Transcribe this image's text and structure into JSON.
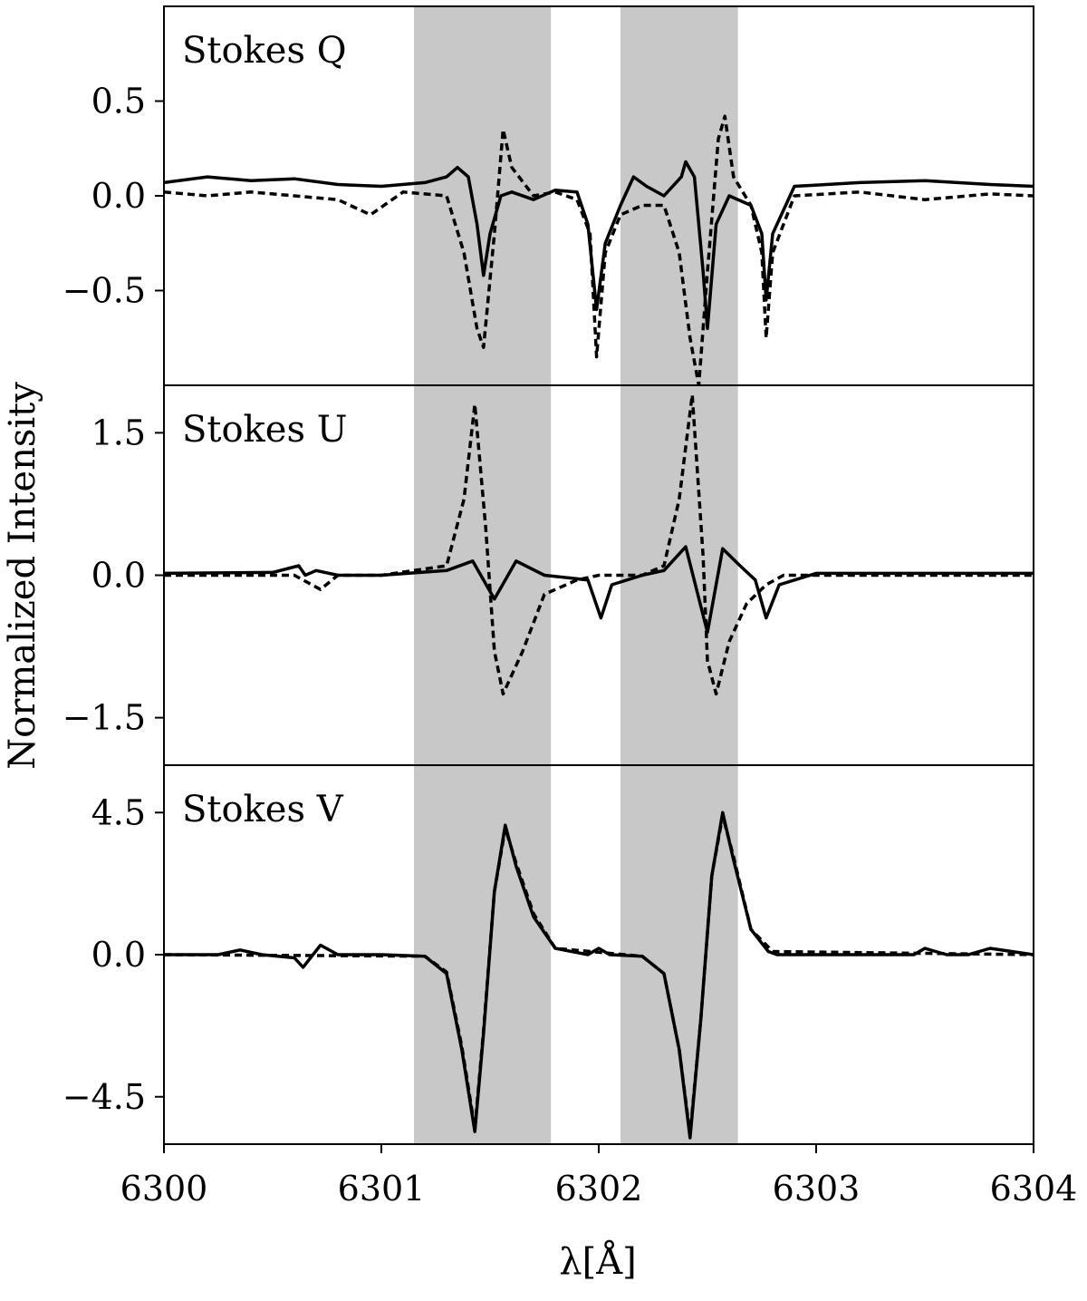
{
  "chart_data": {
    "type": "line",
    "xlabel": "λ[Å]",
    "ylabel": "Normalized Intensity",
    "xlim": [
      6300,
      6304
    ],
    "x_ticks": [
      "6300",
      "6301",
      "6302",
      "6303",
      "6304"
    ],
    "x_tick_values": [
      6300,
      6301,
      6302,
      6303,
      6304
    ],
    "shaded_bands": [
      [
        6301.15,
        6301.78
      ],
      [
        6302.1,
        6302.64
      ]
    ],
    "band_color": "#c8c8c8",
    "line_color": "#000000",
    "panels": [
      {
        "id": "Q",
        "label": "Stokes Q",
        "ylim": [
          -1.0,
          1.0
        ],
        "y_ticks": [
          "0.5",
          "0.0",
          "−0.5"
        ],
        "y_tick_values": [
          0.5,
          0.0,
          -0.5
        ],
        "series": [
          {
            "style": "solid",
            "x": [
              6300.0,
              6300.2,
              6300.4,
              6300.6,
              6300.8,
              6301.0,
              6301.2,
              6301.3,
              6301.35,
              6301.4,
              6301.44,
              6301.47,
              6301.5,
              6301.55,
              6301.6,
              6301.7,
              6301.8,
              6301.9,
              6301.95,
              6301.99,
              6302.03,
              6302.1,
              6302.16,
              6302.22,
              6302.3,
              6302.38,
              6302.4,
              6302.44,
              6302.48,
              6302.5,
              6302.54,
              6302.6,
              6302.7,
              6302.75,
              6302.77,
              6302.8,
              6302.9,
              6303.2,
              6303.5,
              6303.8,
              6304.0
            ],
            "y": [
              0.07,
              0.1,
              0.08,
              0.09,
              0.06,
              0.05,
              0.07,
              0.1,
              0.15,
              0.1,
              -0.15,
              -0.42,
              -0.2,
              0.0,
              0.02,
              -0.02,
              0.03,
              0.02,
              -0.15,
              -0.6,
              -0.25,
              -0.05,
              0.1,
              0.05,
              0.0,
              0.1,
              0.18,
              0.1,
              -0.4,
              -0.7,
              -0.15,
              0.0,
              -0.05,
              -0.2,
              -0.55,
              -0.2,
              0.05,
              0.07,
              0.08,
              0.06,
              0.05
            ]
          },
          {
            "style": "dashed",
            "x": [
              6300.0,
              6300.2,
              6300.4,
              6300.6,
              6300.8,
              6300.95,
              6301.1,
              6301.3,
              6301.38,
              6301.44,
              6301.47,
              6301.52,
              6301.56,
              6301.6,
              6301.7,
              6301.8,
              6301.9,
              6301.96,
              6301.99,
              6302.03,
              6302.1,
              6302.2,
              6302.3,
              6302.37,
              6302.42,
              6302.46,
              6302.5,
              6302.55,
              6302.58,
              6302.62,
              6302.7,
              6302.75,
              6302.77,
              6302.8,
              6302.9,
              6303.2,
              6303.5,
              6303.8,
              6304.0
            ],
            "y": [
              0.02,
              0.0,
              0.02,
              0.0,
              -0.02,
              -0.1,
              0.02,
              0.0,
              -0.3,
              -0.7,
              -0.8,
              -0.2,
              0.35,
              0.15,
              0.0,
              0.02,
              -0.02,
              -0.2,
              -0.85,
              -0.3,
              -0.1,
              -0.05,
              -0.05,
              -0.3,
              -0.75,
              -1.0,
              -0.4,
              0.3,
              0.42,
              0.1,
              -0.05,
              -0.3,
              -0.75,
              -0.3,
              0.0,
              0.02,
              -0.02,
              0.01,
              0.0
            ]
          }
        ]
      },
      {
        "id": "U",
        "label": "Stokes U",
        "ylim": [
          -2.0,
          2.0
        ],
        "y_ticks": [
          "1.5",
          "0.0",
          "−1.5"
        ],
        "y_tick_values": [
          1.5,
          0.0,
          -1.5
        ],
        "series": [
          {
            "style": "solid",
            "x": [
              6300.0,
              6300.5,
              6300.62,
              6300.65,
              6300.7,
              6300.8,
              6301.0,
              6301.3,
              6301.42,
              6301.52,
              6301.62,
              6301.75,
              6301.95,
              6302.01,
              6302.06,
              6302.2,
              6302.3,
              6302.4,
              6302.5,
              6302.57,
              6302.65,
              6302.72,
              6302.77,
              6302.83,
              6303.0,
              6303.5,
              6304.0
            ],
            "y": [
              0.02,
              0.03,
              0.1,
              0.0,
              0.05,
              0.0,
              0.0,
              0.05,
              0.15,
              -0.25,
              0.15,
              0.0,
              -0.05,
              -0.45,
              -0.1,
              0.0,
              0.05,
              0.3,
              -0.6,
              0.28,
              0.1,
              -0.05,
              -0.45,
              -0.1,
              0.02,
              0.02,
              0.02
            ]
          },
          {
            "style": "dashed",
            "x": [
              6300.0,
              6300.6,
              6300.72,
              6300.8,
              6301.0,
              6301.3,
              6301.38,
              6301.43,
              6301.48,
              6301.52,
              6301.56,
              6301.65,
              6301.75,
              6301.9,
              6302.0,
              6302.2,
              6302.3,
              6302.37,
              6302.43,
              6302.48,
              6302.5,
              6302.54,
              6302.6,
              6302.68,
              6302.77,
              6302.85,
              6303.0,
              6303.5,
              6304.0
            ],
            "y": [
              0.0,
              0.0,
              -0.15,
              0.0,
              0.0,
              0.1,
              0.8,
              1.8,
              0.5,
              -0.8,
              -1.25,
              -0.8,
              -0.2,
              -0.05,
              0.0,
              0.0,
              0.1,
              0.8,
              1.9,
              0.2,
              -0.9,
              -1.25,
              -0.7,
              -0.3,
              -0.1,
              0.0,
              0.0,
              0.0,
              0.0
            ]
          }
        ]
      },
      {
        "id": "V",
        "label": "Stokes V",
        "ylim": [
          -6.0,
          6.0
        ],
        "y_ticks": [
          "4.5",
          "0.0",
          "−4.5"
        ],
        "y_tick_values": [
          4.5,
          0.0,
          -4.5
        ],
        "series": [
          {
            "style": "solid",
            "x": [
              6300.0,
              6300.25,
              6300.35,
              6300.45,
              6300.6,
              6300.64,
              6300.72,
              6300.8,
              6301.0,
              6301.2,
              6301.3,
              6301.37,
              6301.43,
              6301.47,
              6301.52,
              6301.57,
              6301.62,
              6301.7,
              6301.8,
              6301.95,
              6302.0,
              6302.05,
              6302.2,
              6302.3,
              6302.37,
              6302.42,
              6302.47,
              6302.52,
              6302.57,
              6302.62,
              6302.7,
              6302.78,
              6302.82,
              6302.95,
              6303.3,
              6303.45,
              6303.5,
              6303.6,
              6303.7,
              6303.8,
              6304.0
            ],
            "y": [
              0.0,
              0.0,
              0.15,
              0.0,
              -0.1,
              -0.4,
              0.3,
              0.0,
              0.0,
              -0.05,
              -0.6,
              -3.0,
              -5.6,
              -2.5,
              2.0,
              4.1,
              2.8,
              1.2,
              0.2,
              0.0,
              0.2,
              0.0,
              -0.05,
              -0.6,
              -3.0,
              -5.8,
              -2.0,
              2.5,
              4.5,
              3.0,
              0.8,
              0.1,
              0.0,
              0.0,
              0.0,
              0.0,
              0.2,
              0.0,
              0.0,
              0.2,
              0.0
            ]
          },
          {
            "style": "dashed",
            "x": [
              6300.0,
              6301.2,
              6301.3,
              6301.37,
              6301.43,
              6301.47,
              6301.52,
              6301.57,
              6301.62,
              6301.7,
              6301.8,
              6302.2,
              6302.3,
              6302.37,
              6302.42,
              6302.47,
              6302.52,
              6302.57,
              6302.62,
              6302.7,
              6302.8,
              6304.0
            ],
            "y": [
              0.0,
              -0.05,
              -0.55,
              -2.9,
              -5.5,
              -2.4,
              2.0,
              4.0,
              2.9,
              1.3,
              0.2,
              -0.05,
              -0.6,
              -3.0,
              -5.7,
              -2.0,
              2.5,
              4.4,
              3.1,
              0.8,
              0.1,
              0.0
            ]
          }
        ]
      }
    ]
  }
}
